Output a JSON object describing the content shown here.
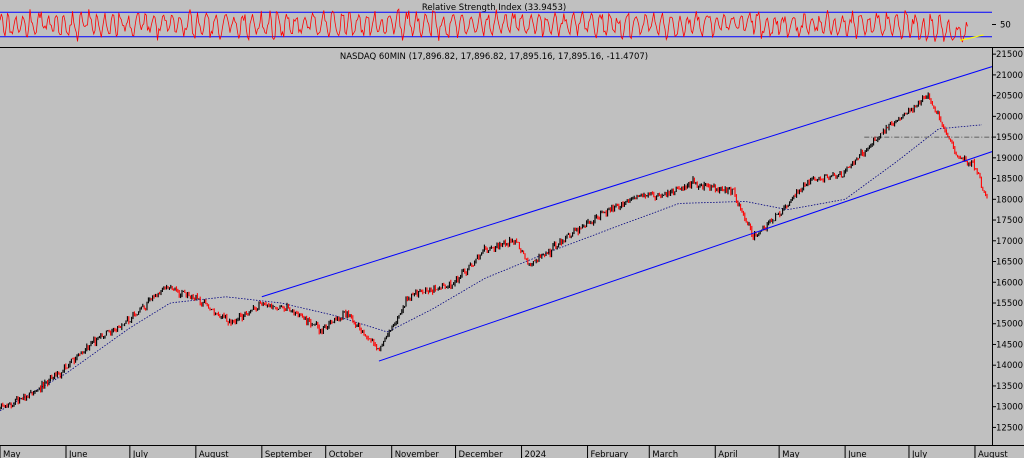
{
  "chart_data": [
    {
      "type": "line",
      "title": "Relative Strength Index (33.9453)",
      "y_ticks": [
        50
      ],
      "reference_lines": [
        70,
        30
      ],
      "ylim": [
        15,
        85
      ],
      "colors": {
        "rsi": "#ff0000",
        "bands": "#0000ff",
        "trend": "#ffff00"
      },
      "trend_line": {
        "from_date": "2024-07-25",
        "to_date": "2024-08-05",
        "y_from": 24,
        "y_to": 33
      }
    },
    {
      "type": "candlestick",
      "title": "NASDAQ 60MIN (17,896.82, 17,896.82, 17,895.16, 17,895.16, -11.4707)",
      "ylim": [
        12100,
        21600
      ],
      "y_ticks": [
        12500,
        13000,
        13500,
        14000,
        14500,
        15000,
        15500,
        16000,
        16500,
        17000,
        17500,
        18000,
        18500,
        19000,
        19500,
        20000,
        20500,
        21000,
        21500
      ],
      "x_ticks": [
        "May",
        "June",
        "July",
        "August",
        "September",
        "October",
        "November",
        "December",
        "2024",
        "February",
        "March",
        "April",
        "May",
        "June",
        "July",
        "August"
      ],
      "x_range": [
        "2023-05-01",
        "2024-08-09"
      ],
      "series": [
        {
          "name": "Price",
          "type": "close",
          "x": [
            "2023-05-01",
            "2023-05-15",
            "2023-05-31",
            "2023-06-15",
            "2023-06-30",
            "2023-07-18",
            "2023-08-01",
            "2023-08-18",
            "2023-09-01",
            "2023-09-14",
            "2023-09-29",
            "2023-10-11",
            "2023-10-26",
            "2023-11-10",
            "2023-11-30",
            "2023-12-14",
            "2023-12-29",
            "2024-01-05",
            "2024-01-25",
            "2024-02-12",
            "2024-02-26",
            "2024-03-08",
            "2024-03-21",
            "2024-04-09",
            "2024-04-19",
            "2024-05-01",
            "2024-05-15",
            "2024-05-31",
            "2024-06-20",
            "2024-07-10",
            "2024-07-24",
            "2024-08-01",
            "2024-08-07"
          ],
          "values": [
            12950,
            13300,
            13900,
            14600,
            15050,
            15900,
            15600,
            15000,
            15500,
            15350,
            14850,
            15250,
            14350,
            15700,
            15950,
            16750,
            17000,
            16400,
            17200,
            17750,
            18100,
            18100,
            18400,
            18200,
            17100,
            17650,
            18450,
            18600,
            19700,
            20500,
            19000,
            18800,
            17900
          ]
        },
        {
          "name": "Moving Average",
          "type": "dotted",
          "x": [
            "2023-05-01",
            "2023-06-01",
            "2023-07-01",
            "2023-07-20",
            "2023-08-15",
            "2023-09-10",
            "2023-10-05",
            "2023-10-30",
            "2023-11-20",
            "2023-12-15",
            "2024-01-15",
            "2024-02-15",
            "2024-03-15",
            "2024-04-15",
            "2024-05-05",
            "2024-06-01",
            "2024-06-25",
            "2024-07-15",
            "2024-08-05"
          ],
          "values": [
            12900,
            13800,
            14900,
            15500,
            15650,
            15500,
            15200,
            14800,
            15350,
            16100,
            16750,
            17350,
            17900,
            17950,
            17750,
            18000,
            18900,
            19700,
            19800
          ]
        },
        {
          "name": "Upper Channel",
          "type": "line",
          "x": [
            "2023-09-01",
            "2024-08-09"
          ],
          "values": [
            15650,
            21200
          ]
        },
        {
          "name": "Lower Channel",
          "type": "line",
          "x": [
            "2023-10-26",
            "2024-08-09"
          ],
          "values": [
            14100,
            19150
          ]
        },
        {
          "name": "Horizontal Level",
          "type": "dashdot",
          "x": [
            "2024-06-10",
            "2024-08-09"
          ],
          "values": [
            19500,
            19500
          ]
        }
      ]
    }
  ]
}
